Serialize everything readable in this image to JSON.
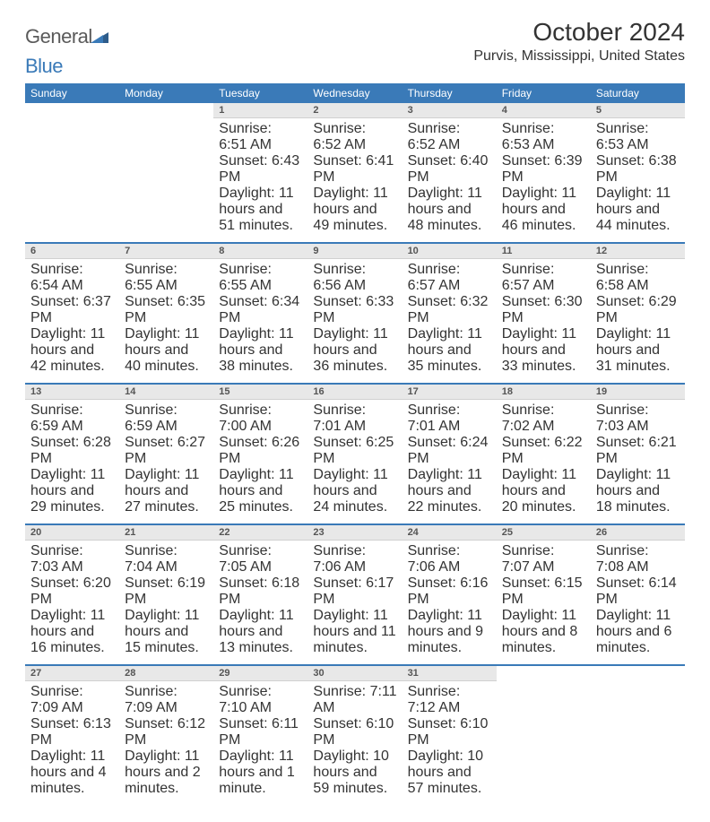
{
  "logo": {
    "general": "General",
    "blue": "Blue"
  },
  "title": "October 2024",
  "location": "Purvis, Mississippi, United States",
  "colors": {
    "header_bg": "#3a7ab8",
    "header_text": "#ffffff",
    "daynum_bg": "#e8e8e8",
    "body_text": "#333333",
    "logo_gray": "#5a5a5a",
    "logo_blue": "#3a7ab8"
  },
  "day_headers": [
    "Sunday",
    "Monday",
    "Tuesday",
    "Wednesday",
    "Thursday",
    "Friday",
    "Saturday"
  ],
  "weeks": [
    {
      "nums": [
        "",
        "",
        "1",
        "2",
        "3",
        "4",
        "5"
      ],
      "cells": [
        null,
        null,
        {
          "sunrise": "Sunrise: 6:51 AM",
          "sunset": "Sunset: 6:43 PM",
          "daylight": "Daylight: 11 hours and 51 minutes."
        },
        {
          "sunrise": "Sunrise: 6:52 AM",
          "sunset": "Sunset: 6:41 PM",
          "daylight": "Daylight: 11 hours and 49 minutes."
        },
        {
          "sunrise": "Sunrise: 6:52 AM",
          "sunset": "Sunset: 6:40 PM",
          "daylight": "Daylight: 11 hours and 48 minutes."
        },
        {
          "sunrise": "Sunrise: 6:53 AM",
          "sunset": "Sunset: 6:39 PM",
          "daylight": "Daylight: 11 hours and 46 minutes."
        },
        {
          "sunrise": "Sunrise: 6:53 AM",
          "sunset": "Sunset: 6:38 PM",
          "daylight": "Daylight: 11 hours and 44 minutes."
        }
      ]
    },
    {
      "nums": [
        "6",
        "7",
        "8",
        "9",
        "10",
        "11",
        "12"
      ],
      "cells": [
        {
          "sunrise": "Sunrise: 6:54 AM",
          "sunset": "Sunset: 6:37 PM",
          "daylight": "Daylight: 11 hours and 42 minutes."
        },
        {
          "sunrise": "Sunrise: 6:55 AM",
          "sunset": "Sunset: 6:35 PM",
          "daylight": "Daylight: 11 hours and 40 minutes."
        },
        {
          "sunrise": "Sunrise: 6:55 AM",
          "sunset": "Sunset: 6:34 PM",
          "daylight": "Daylight: 11 hours and 38 minutes."
        },
        {
          "sunrise": "Sunrise: 6:56 AM",
          "sunset": "Sunset: 6:33 PM",
          "daylight": "Daylight: 11 hours and 36 minutes."
        },
        {
          "sunrise": "Sunrise: 6:57 AM",
          "sunset": "Sunset: 6:32 PM",
          "daylight": "Daylight: 11 hours and 35 minutes."
        },
        {
          "sunrise": "Sunrise: 6:57 AM",
          "sunset": "Sunset: 6:30 PM",
          "daylight": "Daylight: 11 hours and 33 minutes."
        },
        {
          "sunrise": "Sunrise: 6:58 AM",
          "sunset": "Sunset: 6:29 PM",
          "daylight": "Daylight: 11 hours and 31 minutes."
        }
      ]
    },
    {
      "nums": [
        "13",
        "14",
        "15",
        "16",
        "17",
        "18",
        "19"
      ],
      "cells": [
        {
          "sunrise": "Sunrise: 6:59 AM",
          "sunset": "Sunset: 6:28 PM",
          "daylight": "Daylight: 11 hours and 29 minutes."
        },
        {
          "sunrise": "Sunrise: 6:59 AM",
          "sunset": "Sunset: 6:27 PM",
          "daylight": "Daylight: 11 hours and 27 minutes."
        },
        {
          "sunrise": "Sunrise: 7:00 AM",
          "sunset": "Sunset: 6:26 PM",
          "daylight": "Daylight: 11 hours and 25 minutes."
        },
        {
          "sunrise": "Sunrise: 7:01 AM",
          "sunset": "Sunset: 6:25 PM",
          "daylight": "Daylight: 11 hours and 24 minutes."
        },
        {
          "sunrise": "Sunrise: 7:01 AM",
          "sunset": "Sunset: 6:24 PM",
          "daylight": "Daylight: 11 hours and 22 minutes."
        },
        {
          "sunrise": "Sunrise: 7:02 AM",
          "sunset": "Sunset: 6:22 PM",
          "daylight": "Daylight: 11 hours and 20 minutes."
        },
        {
          "sunrise": "Sunrise: 7:03 AM",
          "sunset": "Sunset: 6:21 PM",
          "daylight": "Daylight: 11 hours and 18 minutes."
        }
      ]
    },
    {
      "nums": [
        "20",
        "21",
        "22",
        "23",
        "24",
        "25",
        "26"
      ],
      "cells": [
        {
          "sunrise": "Sunrise: 7:03 AM",
          "sunset": "Sunset: 6:20 PM",
          "daylight": "Daylight: 11 hours and 16 minutes."
        },
        {
          "sunrise": "Sunrise: 7:04 AM",
          "sunset": "Sunset: 6:19 PM",
          "daylight": "Daylight: 11 hours and 15 minutes."
        },
        {
          "sunrise": "Sunrise: 7:05 AM",
          "sunset": "Sunset: 6:18 PM",
          "daylight": "Daylight: 11 hours and 13 minutes."
        },
        {
          "sunrise": "Sunrise: 7:06 AM",
          "sunset": "Sunset: 6:17 PM",
          "daylight": "Daylight: 11 hours and 11 minutes."
        },
        {
          "sunrise": "Sunrise: 7:06 AM",
          "sunset": "Sunset: 6:16 PM",
          "daylight": "Daylight: 11 hours and 9 minutes."
        },
        {
          "sunrise": "Sunrise: 7:07 AM",
          "sunset": "Sunset: 6:15 PM",
          "daylight": "Daylight: 11 hours and 8 minutes."
        },
        {
          "sunrise": "Sunrise: 7:08 AM",
          "sunset": "Sunset: 6:14 PM",
          "daylight": "Daylight: 11 hours and 6 minutes."
        }
      ]
    },
    {
      "nums": [
        "27",
        "28",
        "29",
        "30",
        "31",
        "",
        ""
      ],
      "cells": [
        {
          "sunrise": "Sunrise: 7:09 AM",
          "sunset": "Sunset: 6:13 PM",
          "daylight": "Daylight: 11 hours and 4 minutes."
        },
        {
          "sunrise": "Sunrise: 7:09 AM",
          "sunset": "Sunset: 6:12 PM",
          "daylight": "Daylight: 11 hours and 2 minutes."
        },
        {
          "sunrise": "Sunrise: 7:10 AM",
          "sunset": "Sunset: 6:11 PM",
          "daylight": "Daylight: 11 hours and 1 minute."
        },
        {
          "sunrise": "Sunrise: 7:11 AM",
          "sunset": "Sunset: 6:10 PM",
          "daylight": "Daylight: 10 hours and 59 minutes."
        },
        {
          "sunrise": "Sunrise: 7:12 AM",
          "sunset": "Sunset: 6:10 PM",
          "daylight": "Daylight: 10 hours and 57 minutes."
        },
        null,
        null
      ]
    }
  ]
}
